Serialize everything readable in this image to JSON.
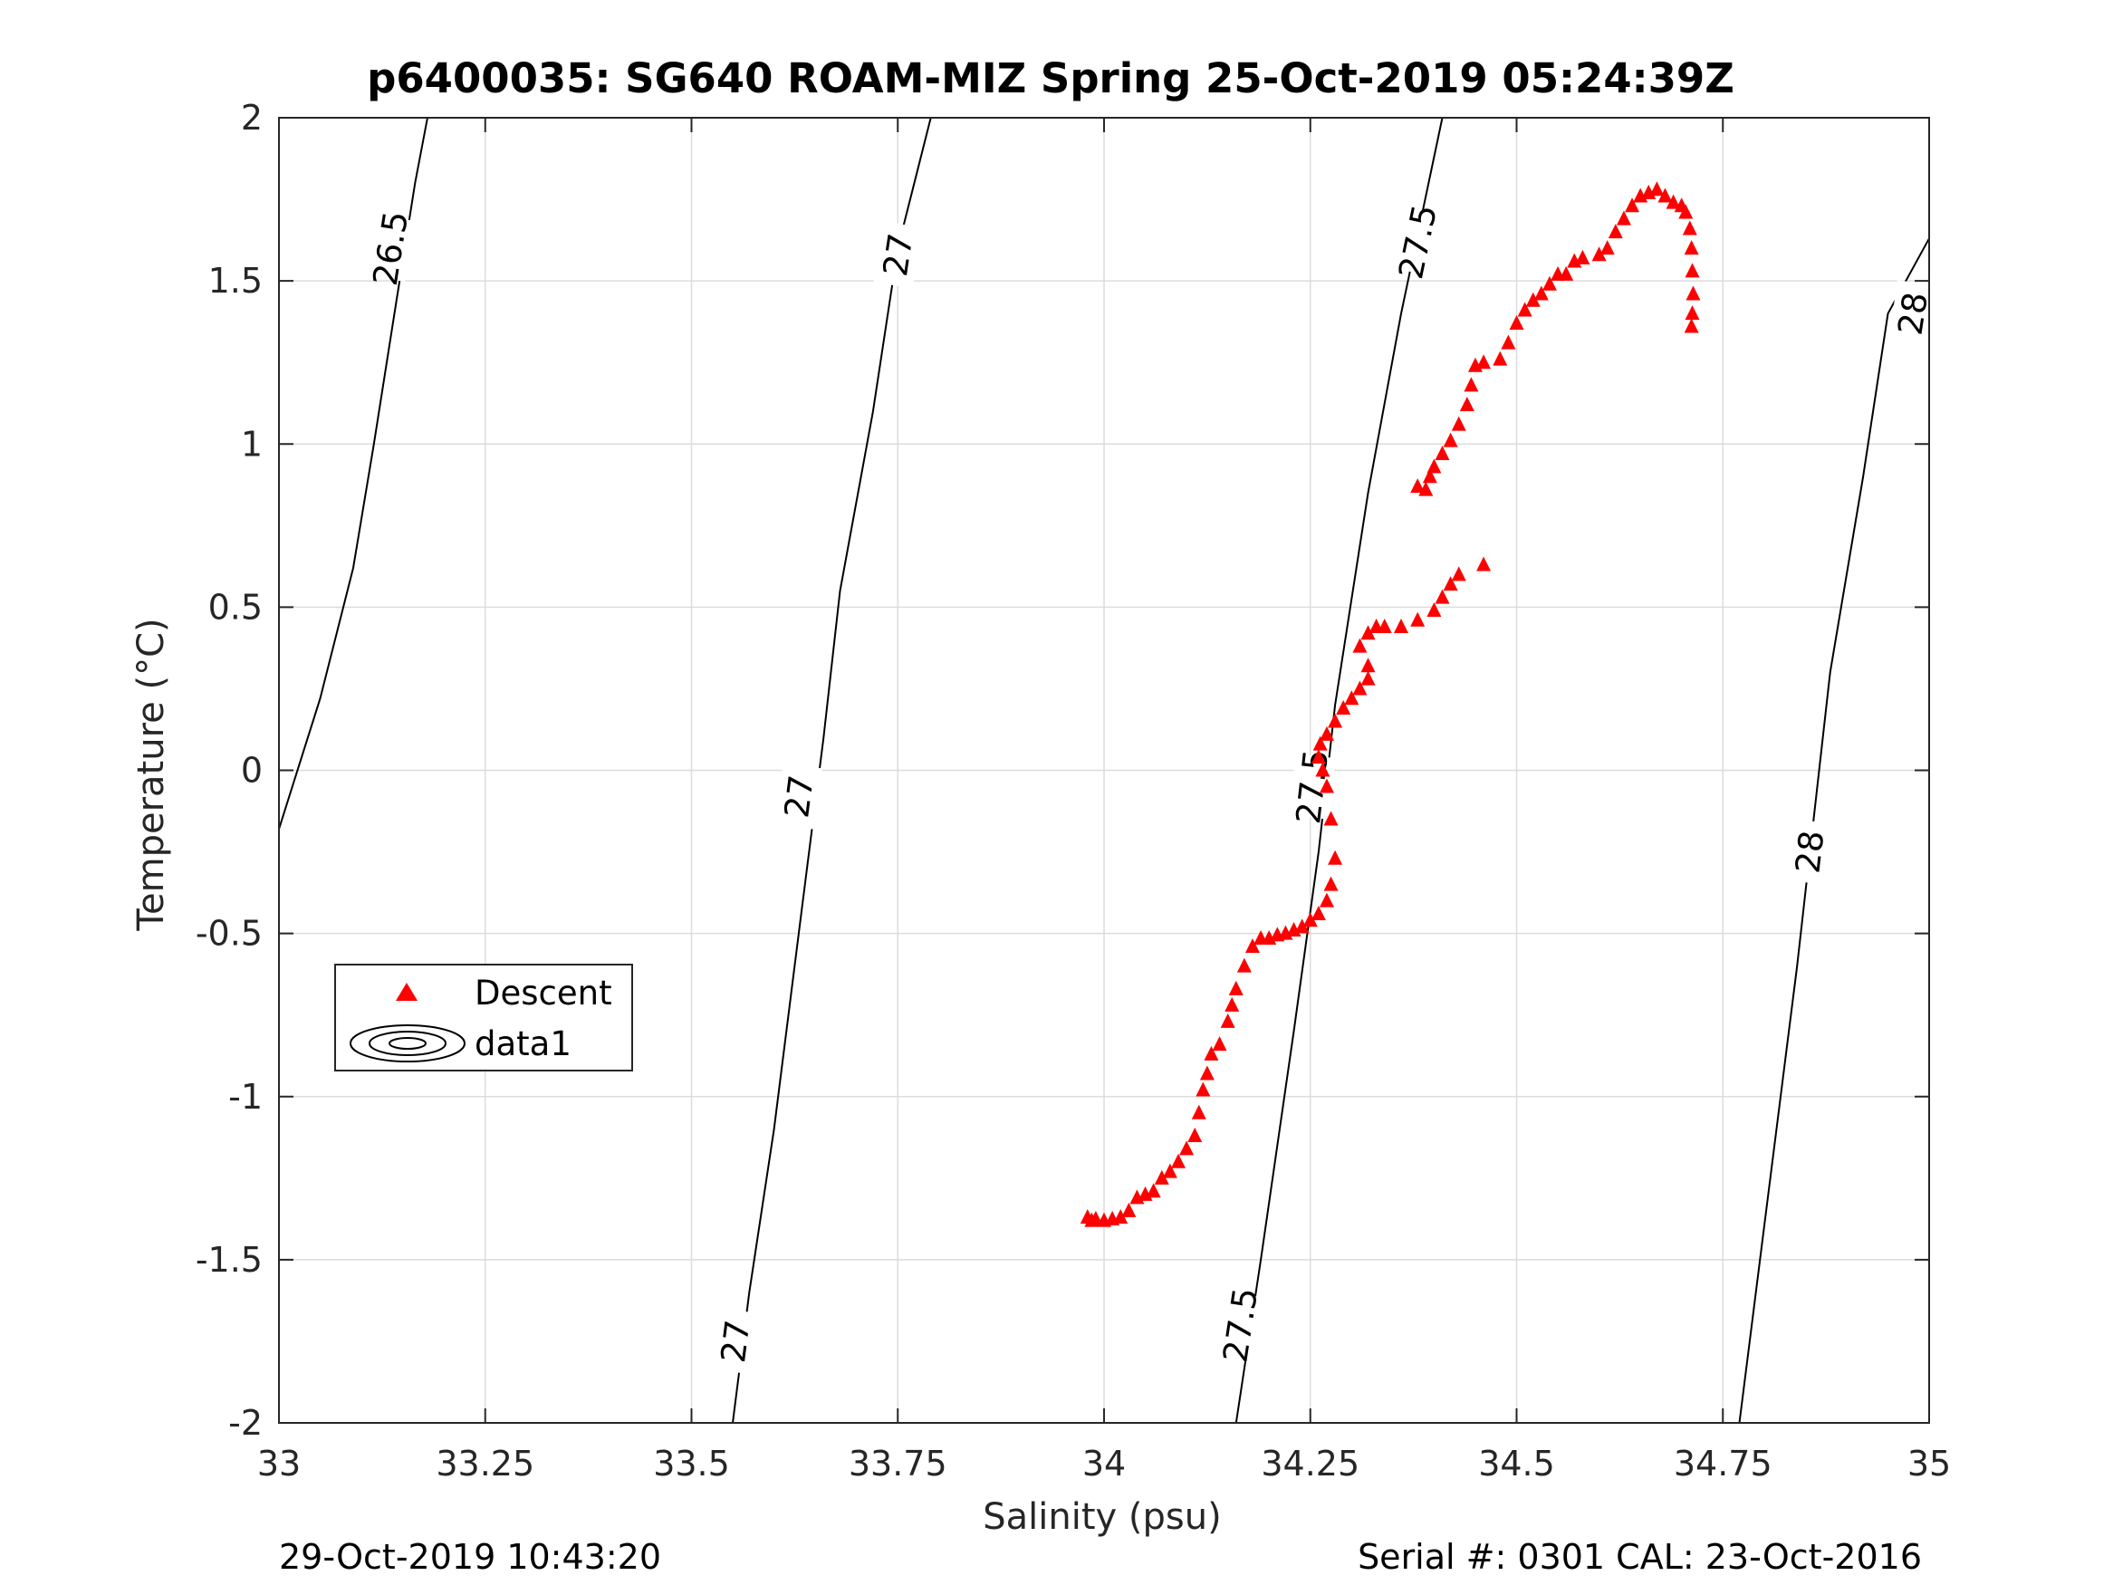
{
  "chart_data": {
    "type": "scatter",
    "title": "p6400035: SG640 ROAM-MIZ Spring 25-Oct-2019 05:24:39Z",
    "xlabel": "Salinity (psu)",
    "ylabel": "Temperature (°C)",
    "xlim": [
      33,
      35
    ],
    "ylim": [
      -2,
      2
    ],
    "x_ticks": [
      "33",
      "33.25",
      "33.5",
      "33.75",
      "34",
      "34.25",
      "34.5",
      "34.75",
      "35"
    ],
    "y_ticks": [
      "-2",
      "-1.5",
      "-1",
      "-0.5",
      "0",
      "0.5",
      "1",
      "1.5",
      "2"
    ],
    "grid": true,
    "legend": {
      "position": "left-center",
      "entries": [
        "Descent",
        "data1"
      ]
    },
    "colors": {
      "descent": "#ff0000",
      "contour": "#000000",
      "grid": "#dcdcdc",
      "axis": "#262626"
    },
    "contours": [
      {
        "level": "26.5",
        "points": [
          [
            33.0,
            -0.18
          ],
          [
            33.05,
            0.22
          ],
          [
            33.09,
            0.62
          ],
          [
            33.115,
            1.0
          ],
          [
            33.14,
            1.4
          ],
          [
            33.165,
            1.8
          ],
          [
            33.18,
            2.0
          ]
        ],
        "labels": [
          [
            33.135,
            1.6
          ]
        ]
      },
      {
        "level": "27",
        "points": [
          [
            33.55,
            -2.0
          ],
          [
            33.57,
            -1.6
          ],
          [
            33.6,
            -1.1
          ],
          [
            33.63,
            -0.5
          ],
          [
            33.66,
            0.1
          ],
          [
            33.68,
            0.55
          ],
          [
            33.72,
            1.1
          ],
          [
            33.75,
            1.6
          ],
          [
            33.79,
            2.0
          ]
        ],
        "labels": [
          [
            33.553,
            -1.75
          ],
          [
            33.63,
            -0.08
          ],
          [
            33.75,
            1.58
          ]
        ]
      },
      {
        "level": "27.5",
        "points": [
          [
            34.16,
            -2.0
          ],
          [
            34.19,
            -1.5
          ],
          [
            34.23,
            -0.8
          ],
          [
            34.26,
            -0.25
          ],
          [
            34.28,
            0.2
          ],
          [
            34.32,
            0.85
          ],
          [
            34.36,
            1.4
          ],
          [
            34.41,
            2.0
          ]
        ],
        "labels": [
          [
            34.165,
            -1.7
          ],
          [
            34.252,
            -0.05
          ],
          [
            34.38,
            1.62
          ]
        ]
      },
      {
        "level": "28",
        "points": [
          [
            34.77,
            -2.0
          ],
          [
            34.8,
            -1.4
          ],
          [
            34.84,
            -0.6
          ],
          [
            34.88,
            0.3
          ],
          [
            34.92,
            0.9
          ],
          [
            34.95,
            1.4
          ],
          [
            35.0,
            1.63
          ]
        ],
        "labels": [
          [
            34.855,
            -0.25
          ],
          [
            34.98,
            1.4
          ]
        ]
      }
    ],
    "series": [
      {
        "name": "Descent",
        "marker": "triangle",
        "points": [
          [
            33.98,
            -1.37
          ],
          [
            33.985,
            -1.38
          ],
          [
            33.99,
            -1.375
          ],
          [
            34.0,
            -1.38
          ],
          [
            34.01,
            -1.375
          ],
          [
            34.02,
            -1.37
          ],
          [
            34.03,
            -1.35
          ],
          [
            34.04,
            -1.31
          ],
          [
            34.05,
            -1.3
          ],
          [
            34.06,
            -1.29
          ],
          [
            34.07,
            -1.25
          ],
          [
            34.08,
            -1.23
          ],
          [
            34.09,
            -1.2
          ],
          [
            34.1,
            -1.16
          ],
          [
            34.11,
            -1.12
          ],
          [
            34.115,
            -1.05
          ],
          [
            34.12,
            -0.98
          ],
          [
            34.125,
            -0.93
          ],
          [
            34.13,
            -0.87
          ],
          [
            34.14,
            -0.84
          ],
          [
            34.15,
            -0.77
          ],
          [
            34.155,
            -0.72
          ],
          [
            34.16,
            -0.67
          ],
          [
            34.17,
            -0.6
          ],
          [
            34.18,
            -0.54
          ],
          [
            34.19,
            -0.515
          ],
          [
            34.2,
            -0.515
          ],
          [
            34.21,
            -0.505
          ],
          [
            34.22,
            -0.5
          ],
          [
            34.23,
            -0.49
          ],
          [
            34.24,
            -0.48
          ],
          [
            34.25,
            -0.46
          ],
          [
            34.26,
            -0.44
          ],
          [
            34.27,
            -0.4
          ],
          [
            34.275,
            -0.35
          ],
          [
            34.28,
            -0.27
          ],
          [
            34.275,
            -0.15
          ],
          [
            34.27,
            -0.05
          ],
          [
            34.265,
            0.0
          ],
          [
            34.26,
            0.04
          ],
          [
            34.262,
            0.08
          ],
          [
            34.27,
            0.11
          ],
          [
            34.28,
            0.15
          ],
          [
            34.29,
            0.19
          ],
          [
            34.3,
            0.22
          ],
          [
            34.31,
            0.25
          ],
          [
            34.32,
            0.28
          ],
          [
            34.32,
            0.32
          ],
          [
            34.31,
            0.38
          ],
          [
            34.32,
            0.42
          ],
          [
            34.33,
            0.44
          ],
          [
            34.34,
            0.44
          ],
          [
            34.36,
            0.44
          ],
          [
            34.38,
            0.46
          ],
          [
            34.4,
            0.49
          ],
          [
            34.41,
            0.53
          ],
          [
            34.42,
            0.57
          ],
          [
            34.43,
            0.6
          ],
          [
            34.46,
            0.63
          ],
          [
            34.38,
            0.87
          ],
          [
            34.39,
            0.86
          ],
          [
            34.395,
            0.9
          ],
          [
            34.4,
            0.93
          ],
          [
            34.41,
            0.97
          ],
          [
            34.42,
            1.01
          ],
          [
            34.43,
            1.06
          ],
          [
            34.44,
            1.12
          ],
          [
            34.445,
            1.18
          ],
          [
            34.45,
            1.24
          ],
          [
            34.46,
            1.25
          ],
          [
            34.48,
            1.26
          ],
          [
            34.49,
            1.31
          ],
          [
            34.5,
            1.37
          ],
          [
            34.51,
            1.41
          ],
          [
            34.52,
            1.44
          ],
          [
            34.53,
            1.46
          ],
          [
            34.54,
            1.49
          ],
          [
            34.55,
            1.52
          ],
          [
            34.56,
            1.52
          ],
          [
            34.57,
            1.56
          ],
          [
            34.58,
            1.57
          ],
          [
            34.6,
            1.58
          ],
          [
            34.61,
            1.6
          ],
          [
            34.62,
            1.65
          ],
          [
            34.63,
            1.69
          ],
          [
            34.64,
            1.73
          ],
          [
            34.65,
            1.76
          ],
          [
            34.66,
            1.77
          ],
          [
            34.67,
            1.78
          ],
          [
            34.68,
            1.76
          ],
          [
            34.69,
            1.74
          ],
          [
            34.7,
            1.73
          ],
          [
            34.705,
            1.71
          ],
          [
            34.71,
            1.66
          ],
          [
            34.712,
            1.6
          ],
          [
            34.713,
            1.53
          ],
          [
            34.714,
            1.46
          ],
          [
            34.713,
            1.4
          ],
          [
            34.712,
            1.36
          ]
        ]
      }
    ]
  },
  "footer": {
    "left": "29-Oct-2019 10:43:20",
    "right": "Serial #: 0301  CAL: 23-Oct-2016"
  }
}
